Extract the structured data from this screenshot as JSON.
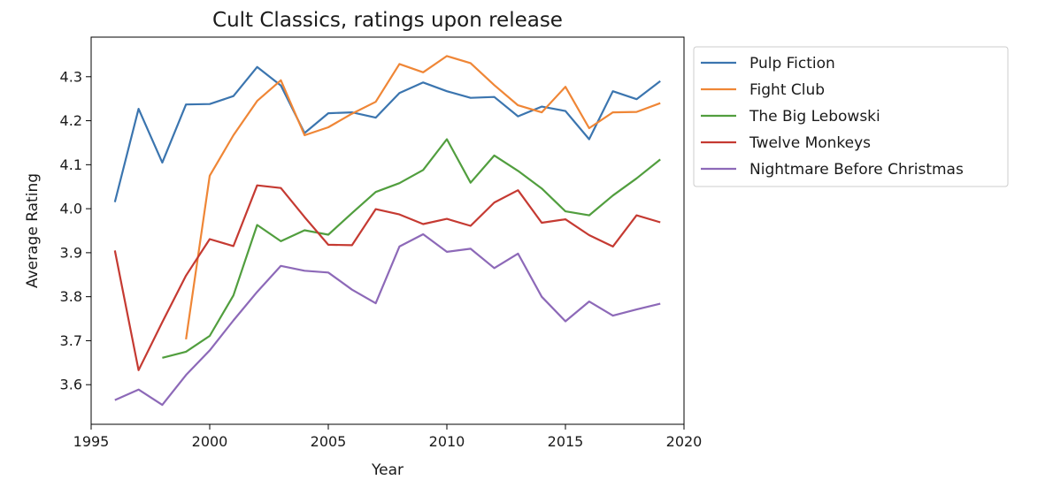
{
  "chart_data": {
    "type": "line",
    "title": "Cult Classics, ratings upon release",
    "xlabel": "Year",
    "ylabel": "Average Rating",
    "xlim": [
      1995,
      2020
    ],
    "ylim": [
      3.51,
      4.39
    ],
    "xticks": [
      1995,
      2000,
      2005,
      2010,
      2015,
      2020
    ],
    "yticks": [
      3.6,
      3.7,
      3.8,
      3.9,
      4.0,
      4.1,
      4.2,
      4.3
    ],
    "ytick_labels": [
      "3.6",
      "3.7",
      "3.8",
      "3.9",
      "4.0",
      "4.1",
      "4.2",
      "4.3"
    ],
    "grid": false,
    "legend_position": "outside-top-right",
    "series": [
      {
        "name": "Pulp Fiction",
        "color": "#3b75af",
        "x": [
          1996,
          1997,
          1998,
          1999,
          2000,
          2001,
          2002,
          2003,
          2004,
          2005,
          2006,
          2007,
          2008,
          2009,
          2010,
          2011,
          2012,
          2013,
          2014,
          2015,
          2016,
          2017,
          2018,
          2019
        ],
        "y": [
          4.015,
          4.227,
          4.105,
          4.237,
          4.238,
          4.256,
          4.322,
          4.28,
          4.172,
          4.217,
          4.219,
          4.207,
          4.263,
          4.287,
          4.267,
          4.252,
          4.254,
          4.21,
          4.232,
          4.222,
          4.158,
          4.267,
          4.249,
          4.29
        ]
      },
      {
        "name": "Fight Club",
        "color": "#ef8636",
        "x": [
          1999,
          2000,
          2001,
          2002,
          2003,
          2004,
          2005,
          2006,
          2007,
          2008,
          2009,
          2010,
          2011,
          2012,
          2013,
          2014,
          2015,
          2016,
          2017,
          2018,
          2019
        ],
        "y": [
          3.703,
          4.075,
          4.167,
          4.245,
          4.292,
          4.167,
          4.185,
          4.216,
          4.243,
          4.329,
          4.31,
          4.347,
          4.331,
          4.281,
          4.235,
          4.219,
          4.277,
          4.183,
          4.219,
          4.22,
          4.24
        ]
      },
      {
        "name": "The Big Lebowski",
        "color": "#519e3e",
        "x": [
          1998,
          1999,
          2000,
          2001,
          2002,
          2003,
          2004,
          2005,
          2006,
          2007,
          2008,
          2009,
          2010,
          2011,
          2012,
          2013,
          2014,
          2015,
          2016,
          2017,
          2018,
          2019
        ],
        "y": [
          3.661,
          3.675,
          3.711,
          3.803,
          3.963,
          3.926,
          3.951,
          3.941,
          3.99,
          4.038,
          4.058,
          4.088,
          4.158,
          4.059,
          4.121,
          4.086,
          4.046,
          3.994,
          3.985,
          4.03,
          4.069,
          4.112
        ]
      },
      {
        "name": "Twelve Monkeys",
        "color": "#c53a32",
        "x": [
          1996,
          1997,
          1998,
          1999,
          2000,
          2001,
          2002,
          2003,
          2004,
          2005,
          2006,
          2007,
          2008,
          2009,
          2010,
          2011,
          2012,
          2013,
          2014,
          2015,
          2016,
          2017,
          2018,
          2019
        ],
        "y": [
          3.905,
          3.633,
          3.742,
          3.848,
          3.931,
          3.915,
          4.053,
          4.047,
          3.981,
          3.918,
          3.917,
          3.999,
          3.987,
          3.965,
          3.977,
          3.961,
          4.014,
          4.042,
          3.968,
          3.976,
          3.94,
          3.914,
          3.985,
          3.969
        ]
      },
      {
        "name": "Nightmare Before Christmas",
        "color": "#8d69b8",
        "x": [
          1996,
          1997,
          1998,
          1999,
          2000,
          2001,
          2002,
          2003,
          2004,
          2005,
          2006,
          2007,
          2008,
          2009,
          2010,
          2011,
          2012,
          2013,
          2014,
          2015,
          2016,
          2017,
          2018,
          2019
        ],
        "y": [
          3.565,
          3.589,
          3.554,
          3.622,
          3.678,
          3.746,
          3.811,
          3.87,
          3.859,
          3.855,
          3.816,
          3.785,
          3.914,
          3.942,
          3.902,
          3.909,
          3.865,
          3.898,
          3.8,
          3.744,
          3.789,
          3.757,
          3.771,
          3.784
        ]
      }
    ]
  }
}
